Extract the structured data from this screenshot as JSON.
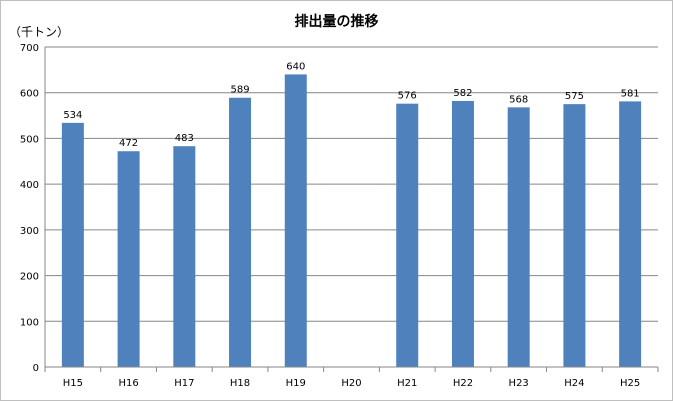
{
  "chart_data": {
    "type": "bar",
    "title": "排出量の推移",
    "ylabel": "（千トン）",
    "xlabel": "",
    "categories": [
      "H15",
      "H16",
      "H17",
      "H18",
      "H19",
      "H20",
      "H21",
      "H22",
      "H23",
      "H24",
      "H25"
    ],
    "values": [
      534,
      472,
      483,
      589,
      640,
      null,
      576,
      582,
      568,
      575,
      581
    ],
    "ylim": [
      0,
      700
    ],
    "yticks": [
      0,
      100,
      200,
      300,
      400,
      500,
      600,
      700
    ],
    "grid": true,
    "legend": "none",
    "bar_color": "#4f81bd"
  }
}
